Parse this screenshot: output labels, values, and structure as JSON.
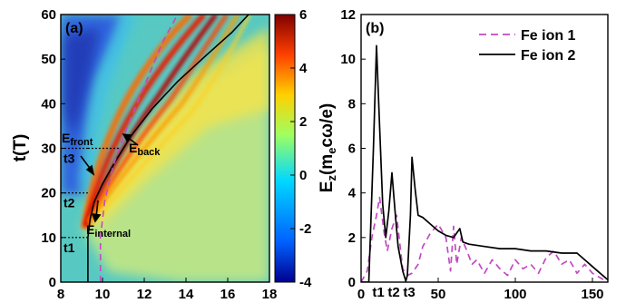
{
  "colors": {
    "fe_ion_1": "#c24ac2",
    "fe_ion_2": "#000000",
    "colormap": [
      "#00008f",
      "#0060ff",
      "#00d8ff",
      "#9fff60",
      "#ffd000",
      "#ff4000",
      "#7f0000"
    ]
  },
  "chart_data": [
    {
      "type": "heatmap",
      "panel_label": "(a)",
      "xlabel": "",
      "ylabel": "t(T)",
      "xlim": [
        8,
        18
      ],
      "ylim": [
        0,
        60
      ],
      "x_ticks": [
        "8",
        "10",
        "12",
        "14",
        "16",
        "18"
      ],
      "y_ticks": [
        "0",
        "10",
        "20",
        "30",
        "40",
        "50",
        "60"
      ],
      "colorbar": {
        "range": [
          -4,
          6
        ],
        "ticks": [
          "6",
          "4",
          "2",
          "0",
          "-2",
          "-4"
        ]
      },
      "series": [
        {
          "style": "solid-black",
          "x": [
            9.3,
            9.3,
            9.4,
            9.6,
            10.0,
            10.6,
            11.4,
            12.4,
            13.6,
            15.0,
            16.2,
            17.0
          ],
          "y": [
            0,
            10,
            14,
            18,
            22,
            27,
            33,
            39,
            45,
            51,
            56,
            60
          ]
        },
        {
          "style": "dashed-magenta",
          "x": [
            9.9,
            9.9,
            10.1,
            10.5,
            11.2,
            12.0,
            12.9,
            13.6
          ],
          "y": [
            0,
            10,
            18,
            26,
            35,
            44,
            54,
            60
          ]
        }
      ],
      "time_markers": [
        {
          "label": "t1",
          "t": 10
        },
        {
          "label": "t2",
          "t": 20
        },
        {
          "label": "t3",
          "t": 30
        }
      ],
      "annotations": {
        "front": {
          "main": "E",
          "sub": "front"
        },
        "back": {
          "main": "E",
          "sub": "back"
        },
        "internal": {
          "main": "E",
          "sub": "internal"
        }
      }
    },
    {
      "type": "line",
      "panel_label": "(b)",
      "xlabel": "",
      "ylabel": {
        "prefix": "E",
        "sub_z": "z",
        "mid": "(m",
        "sub_e": "e",
        "suffix": "cω/e)"
      },
      "xlim": [
        0,
        160
      ],
      "ylim": [
        0,
        12
      ],
      "x_ticks": [
        "0",
        "50",
        "100",
        "150"
      ],
      "y_ticks": [
        "0",
        "2",
        "4",
        "6",
        "8",
        "10",
        "12"
      ],
      "time_labels": [
        {
          "label": "t1",
          "x": 10
        },
        {
          "label": "t2",
          "x": 20
        },
        {
          "label": "t3",
          "x": 30
        }
      ],
      "legend_position": "top-right",
      "series": [
        {
          "name": "Fe ion 1",
          "style": "dashed",
          "x": [
            0,
            4,
            7,
            10,
            12,
            15,
            17,
            20,
            23,
            25,
            27,
            30,
            33,
            37,
            40,
            45,
            50,
            55,
            58,
            60,
            62,
            65,
            68,
            72,
            75,
            80,
            85,
            90,
            95,
            100,
            105,
            110,
            115,
            120,
            125,
            130,
            135,
            140,
            145,
            150,
            155,
            160
          ],
          "y": [
            0,
            0.5,
            2.0,
            3.0,
            3.8,
            2.2,
            1.4,
            2.4,
            3.0,
            1.8,
            0.6,
            0.3,
            0.4,
            0.8,
            1.6,
            2.2,
            2.6,
            2.0,
            0.5,
            2.5,
            0.8,
            2.0,
            1.5,
            0.8,
            1.0,
            0.4,
            1.0,
            0.6,
            0.3,
            1.0,
            0.6,
            0.8,
            0.4,
            1.1,
            1.4,
            0.8,
            1.0,
            0.4,
            0.8,
            0.4,
            0.2,
            0.0
          ]
        },
        {
          "name": "Fe ion 2",
          "style": "solid",
          "x": [
            0,
            5,
            8,
            10,
            12,
            14,
            16,
            18,
            20,
            22,
            24,
            27,
            29,
            30,
            32,
            33,
            35,
            37,
            40,
            45,
            50,
            55,
            60,
            62,
            64,
            66,
            70,
            80,
            90,
            100,
            110,
            120,
            130,
            140,
            145,
            150,
            155,
            160
          ],
          "y": [
            0,
            0,
            6.0,
            10.6,
            7.0,
            3.5,
            2.0,
            3.2,
            4.9,
            3.2,
            1.6,
            0.5,
            0.05,
            0.3,
            3.0,
            5.6,
            4.2,
            3.0,
            2.9,
            2.6,
            2.3,
            2.1,
            2.0,
            2.2,
            2.4,
            1.8,
            1.7,
            1.6,
            1.5,
            1.5,
            1.4,
            1.4,
            1.3,
            1.3,
            1.0,
            0.7,
            0.4,
            0.1
          ]
        }
      ]
    }
  ]
}
